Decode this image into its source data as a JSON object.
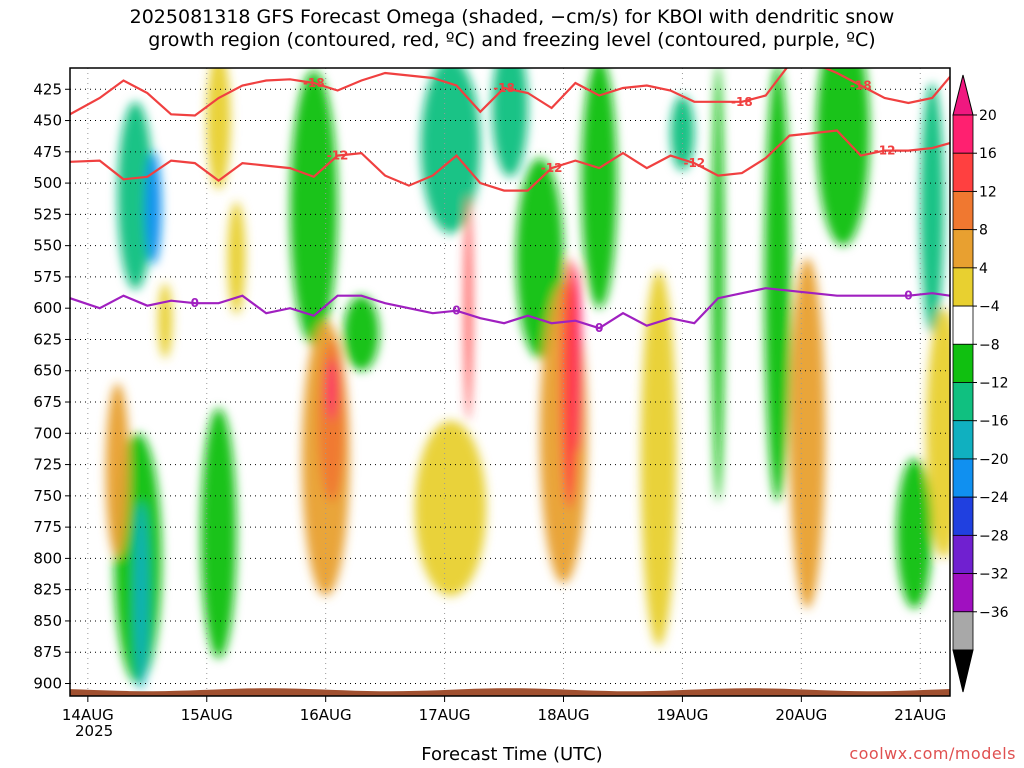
{
  "chart_data": {
    "type": "heatmap",
    "title_line1": "2025081318 GFS Forecast Omega (shaded, −cm/s) for KBOI with dendritic snow",
    "title_line2": "growth region (contoured, red, ºC) and freezing level (contoured, purple, ºC)",
    "xlabel": "Forecast Time (UTC)",
    "credit": "coolwx.com/models",
    "year_label": "2025",
    "x_ticks": [
      "14AUG",
      "15AUG",
      "16AUG",
      "17AUG",
      "18AUG",
      "19AUG",
      "20AUG",
      "21AUG"
    ],
    "x_range_days": [
      -0.15,
      7.25
    ],
    "y_ticks": [
      425,
      450,
      475,
      500,
      525,
      550,
      575,
      600,
      625,
      650,
      675,
      700,
      725,
      750,
      775,
      800,
      825,
      850,
      875,
      900
    ],
    "y_range": [
      408,
      910
    ],
    "colorbar": {
      "labels": [
        "20",
        "16",
        "12",
        "8",
        "4",
        "−4",
        "−8",
        "−12",
        "−16",
        "−20",
        "−24",
        "−28",
        "−32",
        "−36"
      ],
      "colors": [
        "#ff2070",
        "#ff4040",
        "#f07830",
        "#e8a030",
        "#e8d030",
        "#ffffff",
        "#10c010",
        "#10c080",
        "#10b0c0",
        "#1090f0",
        "#2040e0",
        "#7020d0",
        "#a010c0",
        "#a8a8a8"
      ],
      "top_arrow": "#f01880",
      "bottom_arrow": "#000000"
    },
    "freezing_level": {
      "label": "0",
      "color": "#a020c0",
      "x": [
        -0.15,
        0.1,
        0.3,
        0.5,
        0.7,
        0.9,
        1.1,
        1.3,
        1.5,
        1.7,
        1.9,
        2.1,
        2.3,
        2.5,
        2.7,
        2.9,
        3.1,
        3.3,
        3.5,
        3.7,
        3.9,
        4.1,
        4.3,
        4.5,
        4.7,
        4.9,
        5.1,
        5.3,
        5.5,
        5.7,
        5.9,
        6.1,
        6.3,
        6.5,
        6.7,
        6.9,
        7.1,
        7.25
      ],
      "y": [
        592,
        600,
        590,
        598,
        594,
        596,
        596,
        590,
        604,
        600,
        606,
        590,
        590,
        596,
        600,
        604,
        602,
        608,
        612,
        606,
        612,
        610,
        616,
        604,
        614,
        608,
        612,
        592,
        588,
        584,
        586,
        588,
        590,
        590,
        590,
        590,
        588,
        590
      ]
    },
    "dgz_upper": {
      "label": "-18",
      "color": "#f04040",
      "x": [
        -0.15,
        0.1,
        0.3,
        0.5,
        0.7,
        0.9,
        1.1,
        1.3,
        1.5,
        1.7,
        1.9,
        2.1,
        2.3,
        2.5,
        2.7,
        2.9,
        3.1,
        3.3,
        3.5,
        3.7,
        3.9,
        4.1,
        4.3,
        4.5,
        4.7,
        4.9,
        5.1,
        5.3,
        5.5,
        5.7,
        5.9,
        6.1,
        6.3,
        6.5,
        6.7,
        6.9,
        7.1,
        7.25
      ],
      "y": [
        445,
        432,
        418,
        428,
        445,
        446,
        432,
        422,
        418,
        417,
        420,
        426,
        418,
        412,
        414,
        416,
        422,
        443,
        424,
        428,
        440,
        420,
        430,
        424,
        422,
        426,
        435,
        435,
        435,
        430,
        405,
        404,
        412,
        422,
        432,
        436,
        432,
        415
      ]
    },
    "dgz_lower": {
      "label": "-12",
      "color": "#f04040",
      "x": [
        -0.15,
        0.1,
        0.3,
        0.5,
        0.7,
        0.9,
        1.1,
        1.3,
        1.5,
        1.7,
        1.9,
        2.1,
        2.3,
        2.5,
        2.7,
        2.9,
        3.1,
        3.3,
        3.5,
        3.7,
        3.9,
        4.1,
        4.3,
        4.5,
        4.7,
        4.9,
        5.1,
        5.3,
        5.5,
        5.7,
        5.9,
        6.1,
        6.3,
        6.5,
        6.7,
        6.9,
        7.1,
        7.25
      ],
      "y": [
        483,
        482,
        497,
        495,
        482,
        484,
        498,
        484,
        486,
        488,
        495,
        478,
        476,
        494,
        502,
        494,
        478,
        500,
        506,
        506,
        488,
        482,
        488,
        476,
        488,
        478,
        484,
        494,
        492,
        480,
        462,
        460,
        458,
        478,
        474,
        474,
        472,
        468
      ]
    },
    "omega_cells": [
      {
        "x": 0.4,
        "y": 510,
        "w": 0.3,
        "h": 150,
        "v": -12
      },
      {
        "x": 0.55,
        "y": 520,
        "w": 0.14,
        "h": 90,
        "v": -20
      },
      {
        "x": 0.42,
        "y": 800,
        "w": 0.4,
        "h": 200,
        "v": -8
      },
      {
        "x": 0.45,
        "y": 830,
        "w": 0.12,
        "h": 150,
        "v": -16
      },
      {
        "x": 0.25,
        "y": 730,
        "w": 0.2,
        "h": 140,
        "v": 8
      },
      {
        "x": 1.1,
        "y": 450,
        "w": 0.2,
        "h": 110,
        "v": 4
      },
      {
        "x": 1.1,
        "y": 780,
        "w": 0.3,
        "h": 200,
        "v": -8
      },
      {
        "x": 1.25,
        "y": 560,
        "w": 0.15,
        "h": 90,
        "v": 4
      },
      {
        "x": 1.9,
        "y": 520,
        "w": 0.4,
        "h": 220,
        "v": -8
      },
      {
        "x": 2.0,
        "y": 720,
        "w": 0.4,
        "h": 220,
        "v": 8
      },
      {
        "x": 2.05,
        "y": 690,
        "w": 0.22,
        "h": 130,
        "v": 12
      },
      {
        "x": 2.05,
        "y": 665,
        "w": 0.08,
        "h": 50,
        "v": 20
      },
      {
        "x": 2.3,
        "y": 620,
        "w": 0.3,
        "h": 60,
        "v": -8
      },
      {
        "x": 3.05,
        "y": 470,
        "w": 0.5,
        "h": 140,
        "v": -12
      },
      {
        "x": 3.2,
        "y": 600,
        "w": 0.06,
        "h": 180,
        "v": 16
      },
      {
        "x": 3.55,
        "y": 440,
        "w": 0.3,
        "h": 110,
        "v": -12
      },
      {
        "x": 3.8,
        "y": 560,
        "w": 0.4,
        "h": 160,
        "v": -8
      },
      {
        "x": 4.0,
        "y": 700,
        "w": 0.4,
        "h": 240,
        "v": 8
      },
      {
        "x": 4.05,
        "y": 660,
        "w": 0.14,
        "h": 200,
        "v": 16
      },
      {
        "x": 4.12,
        "y": 640,
        "w": 0.06,
        "h": 150,
        "v": 20
      },
      {
        "x": 4.3,
        "y": 500,
        "w": 0.3,
        "h": 200,
        "v": -8
      },
      {
        "x": 4.8,
        "y": 720,
        "w": 0.3,
        "h": 300,
        "v": 4
      },
      {
        "x": 5.3,
        "y": 580,
        "w": 0.1,
        "h": 350,
        "v": -8
      },
      {
        "x": 5.8,
        "y": 580,
        "w": 0.22,
        "h": 350,
        "v": -8
      },
      {
        "x": 6.05,
        "y": 700,
        "w": 0.3,
        "h": 280,
        "v": 8
      },
      {
        "x": 6.35,
        "y": 460,
        "w": 0.45,
        "h": 180,
        "v": -8
      },
      {
        "x": 7.1,
        "y": 520,
        "w": 0.2,
        "h": 200,
        "v": -12
      },
      {
        "x": 7.2,
        "y": 700,
        "w": 0.3,
        "h": 200,
        "v": 4
      },
      {
        "x": 6.95,
        "y": 780,
        "w": 0.3,
        "h": 120,
        "v": -8
      },
      {
        "x": 3.05,
        "y": 760,
        "w": 0.6,
        "h": 140,
        "v": 4
      },
      {
        "x": 0.65,
        "y": 610,
        "w": 0.12,
        "h": 60,
        "v": 4
      },
      {
        "x": 5.0,
        "y": 460,
        "w": 0.2,
        "h": 60,
        "v": -12
      }
    ],
    "terrain_color": "#a05030",
    "grid": true
  }
}
